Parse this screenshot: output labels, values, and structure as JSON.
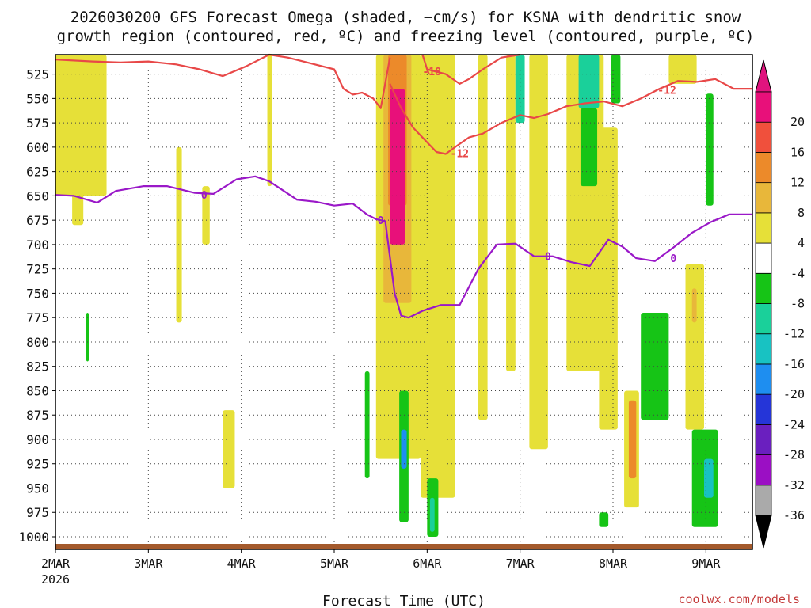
{
  "title_line1": "2026030200 GFS Forecast Omega (shaded, −cm/s) for KSNA with dendritic snow",
  "title_line2": "growth region (contoured, red, ºC) and freezing level (contoured, purple, ºC)",
  "xlabel": "Forecast Time (UTC)",
  "credit": "coolwx.com/models",
  "chart_data": {
    "type": "heatmap",
    "x_unit": "days since 2026-03-02 00Z",
    "x_range": [
      0,
      7.5
    ],
    "x_ticks": [
      {
        "x": 0,
        "label": "2MAR"
      },
      {
        "x": 1,
        "label": "3MAR"
      },
      {
        "x": 2,
        "label": "4MAR"
      },
      {
        "x": 3,
        "label": "5MAR"
      },
      {
        "x": 4,
        "label": "6MAR"
      },
      {
        "x": 5,
        "label": "7MAR"
      },
      {
        "x": 6,
        "label": "8MAR"
      },
      {
        "x": 7,
        "label": "9MAR"
      }
    ],
    "x_year_label": "2026",
    "y_unit": "hPa",
    "y_range": [
      1013,
      505
    ],
    "y_ticks": [
      525,
      550,
      575,
      600,
      625,
      650,
      675,
      700,
      725,
      750,
      775,
      800,
      825,
      850,
      875,
      900,
      925,
      950,
      975,
      1000
    ],
    "colorbar": {
      "levels": [
        -36,
        -32,
        -28,
        -24,
        -20,
        -16,
        -12,
        -8,
        -4,
        4,
        8,
        12,
        16,
        20
      ],
      "labels": [
        "-36",
        "-32",
        "-28",
        "-24",
        "-20",
        "-16",
        "-12",
        "-8",
        "-4",
        "4",
        "8",
        "12",
        "16",
        "20"
      ],
      "colors": [
        "#aaaaaa",
        "#9b0fc4",
        "#6a1fbf",
        "#2535d8",
        "#1e8ef0",
        "#18c2c2",
        "#1ad09a",
        "#16c416",
        "#ffffff",
        "#e6e038",
        "#e8b73a",
        "#ec8a2a",
        "#f0503c",
        "#e8107a"
      ],
      "under_color": "#000000",
      "over_color": "#e0147e"
    },
    "omega_regions": [
      {
        "x0": 0.0,
        "x1": 0.55,
        "p0": 505,
        "p1": 650,
        "color": "#e6e038"
      },
      {
        "x0": 0.18,
        "x1": 0.3,
        "p0": 505,
        "p1": 680,
        "color": "#e6e038"
      },
      {
        "x0": 1.3,
        "x1": 1.36,
        "p0": 600,
        "p1": 780,
        "color": "#e6e038"
      },
      {
        "x0": 1.58,
        "x1": 1.66,
        "p0": 640,
        "p1": 700,
        "color": "#e6e038"
      },
      {
        "x0": 1.8,
        "x1": 1.93,
        "p0": 870,
        "p1": 950,
        "color": "#e6e038"
      },
      {
        "x0": 2.28,
        "x1": 2.33,
        "p0": 505,
        "p1": 640,
        "color": "#e6e038"
      },
      {
        "x0": 3.45,
        "x1": 3.93,
        "p0": 505,
        "p1": 920,
        "color": "#e6e038"
      },
      {
        "x0": 3.53,
        "x1": 3.83,
        "p0": 505,
        "p1": 760,
        "color": "#e8b73a"
      },
      {
        "x0": 3.58,
        "x1": 3.78,
        "p0": 505,
        "p1": 660,
        "color": "#ec8a2a"
      },
      {
        "x0": 3.6,
        "x1": 3.76,
        "p0": 540,
        "p1": 700,
        "color": "#e8107a"
      },
      {
        "x0": 3.93,
        "x1": 4.3,
        "p0": 505,
        "p1": 960,
        "color": "#e6e038"
      },
      {
        "x0": 4.55,
        "x1": 4.65,
        "p0": 505,
        "p1": 880,
        "color": "#e6e038"
      },
      {
        "x0": 4.85,
        "x1": 4.95,
        "p0": 505,
        "p1": 830,
        "color": "#e6e038"
      },
      {
        "x0": 5.1,
        "x1": 5.3,
        "p0": 505,
        "p1": 910,
        "color": "#e6e038"
      },
      {
        "x0": 5.5,
        "x1": 5.9,
        "p0": 505,
        "p1": 830,
        "color": "#e6e038"
      },
      {
        "x0": 5.85,
        "x1": 6.05,
        "p0": 580,
        "p1": 890,
        "color": "#e6e038"
      },
      {
        "x0": 6.12,
        "x1": 6.28,
        "p0": 850,
        "p1": 970,
        "color": "#e6e038"
      },
      {
        "x0": 6.17,
        "x1": 6.25,
        "p0": 860,
        "p1": 940,
        "color": "#ec8a2a"
      },
      {
        "x0": 6.6,
        "x1": 6.9,
        "p0": 505,
        "p1": 535,
        "color": "#e6e038"
      },
      {
        "x0": 6.78,
        "x1": 6.98,
        "p0": 720,
        "p1": 890,
        "color": "#e6e038"
      },
      {
        "x0": 6.85,
        "x1": 6.9,
        "p0": 745,
        "p1": 780,
        "color": "#e8b73a"
      },
      {
        "x0": 4.95,
        "x1": 5.05,
        "p0": 505,
        "p1": 575,
        "color": "#1ad09a"
      },
      {
        "x0": 5.63,
        "x1": 5.85,
        "p0": 505,
        "p1": 560,
        "color": "#1ad09a"
      },
      {
        "x0": 5.65,
        "x1": 5.83,
        "p0": 560,
        "p1": 640,
        "color": "#16c416"
      },
      {
        "x0": 5.98,
        "x1": 6.08,
        "p0": 505,
        "p1": 555,
        "color": "#16c416"
      },
      {
        "x0": 7.0,
        "x1": 7.08,
        "p0": 545,
        "p1": 660,
        "color": "#16c416"
      },
      {
        "x0": 6.3,
        "x1": 6.6,
        "p0": 770,
        "p1": 880,
        "color": "#16c416"
      },
      {
        "x0": 6.85,
        "x1": 7.13,
        "p0": 890,
        "p1": 990,
        "color": "#16c416"
      },
      {
        "x0": 6.98,
        "x1": 7.08,
        "p0": 920,
        "p1": 960,
        "color": "#18c2c2"
      },
      {
        "x0": 3.7,
        "x1": 3.8,
        "p0": 850,
        "p1": 985,
        "color": "#16c416"
      },
      {
        "x0": 3.72,
        "x1": 3.78,
        "p0": 890,
        "p1": 930,
        "color": "#1e8ef0"
      },
      {
        "x0": 4.0,
        "x1": 4.12,
        "p0": 940,
        "p1": 1000,
        "color": "#16c416"
      },
      {
        "x0": 4.03,
        "x1": 4.08,
        "p0": 960,
        "p1": 995,
        "color": "#1ad09a"
      },
      {
        "x0": 3.33,
        "x1": 3.38,
        "p0": 830,
        "p1": 940,
        "color": "#16c416"
      },
      {
        "x0": 0.33,
        "x1": 0.36,
        "p0": 770,
        "p1": 820,
        "color": "#16c416"
      },
      {
        "x0": 5.85,
        "x1": 5.95,
        "p0": 975,
        "p1": 990,
        "color": "#16c416"
      }
    ],
    "freezing_level": {
      "name": "freezing level 0C",
      "color": "#9a18c8",
      "x": [
        0,
        0.2,
        0.45,
        0.65,
        0.95,
        1.2,
        1.5,
        1.7,
        1.95,
        2.15,
        2.3,
        2.6,
        2.8,
        3.0,
        3.2,
        3.35,
        3.45,
        3.55,
        3.65,
        3.72,
        3.8,
        3.95,
        4.15,
        4.35,
        4.55,
        4.75,
        4.95,
        5.15,
        5.35,
        5.55,
        5.75,
        5.95,
        6.1,
        6.25,
        6.45,
        6.65,
        6.85,
        7.05,
        7.25,
        7.5
      ],
      "y": [
        649,
        650,
        657,
        645,
        640,
        640,
        647,
        648,
        633,
        630,
        635,
        654,
        656,
        660,
        658,
        669,
        674,
        676,
        750,
        773,
        775,
        768,
        762,
        762,
        725,
        700,
        699,
        712,
        712,
        718,
        722,
        695,
        702,
        714,
        717,
        703,
        688,
        677,
        669,
        669
      ],
      "labels": [
        {
          "x": 1.6,
          "p": 649,
          "text": "0"
        },
        {
          "x": 3.5,
          "p": 675,
          "text": "0"
        },
        {
          "x": 5.3,
          "p": 712,
          "text": "0"
        },
        {
          "x": 6.65,
          "p": 714,
          "text": "0"
        }
      ]
    },
    "dgz_contours": [
      {
        "name": "-18C upper",
        "color": "#e84848",
        "x": [
          0.0,
          0.4,
          0.7,
          1.0,
          1.3,
          1.55,
          1.8,
          2.05,
          2.3,
          2.5,
          2.75,
          3.0,
          3.1,
          3.2,
          3.3,
          3.42,
          3.5,
          3.6
        ],
        "y": [
          510,
          512,
          513,
          512,
          515,
          520,
          527,
          517,
          505,
          508,
          514,
          520,
          540,
          546,
          544,
          550,
          560,
          508
        ]
      },
      {
        "name": "-18C right",
        "color": "#e84848",
        "x": [
          4.0,
          4.2,
          4.35,
          4.45,
          4.6,
          4.8,
          5.0
        ],
        "y": [
          520,
          525,
          535,
          530,
          520,
          508,
          505
        ]
      },
      {
        "name": "-12C",
        "color": "#e84848",
        "x": [
          3.6,
          3.72,
          3.85,
          4.0,
          4.1,
          4.2,
          4.3,
          4.45,
          4.6,
          4.8,
          5.0,
          5.15,
          5.3,
          5.5,
          5.7,
          5.9,
          6.1,
          6.3,
          6.5,
          6.7,
          6.9,
          7.1,
          7.3,
          7.5
        ],
        "y": [
          535,
          560,
          580,
          595,
          605,
          607,
          600,
          590,
          586,
          575,
          567,
          570,
          566,
          558,
          555,
          553,
          558,
          550,
          540,
          532,
          533,
          530,
          540,
          540
        ]
      },
      {
        "name": "-18C spike",
        "color": "#e84848",
        "x": [
          3.95,
          4.0,
          4.02
        ],
        "y": [
          505,
          520,
          525
        ]
      }
    ],
    "dgz_labels": [
      {
        "x": 4.05,
        "p": 522,
        "text": "-18"
      },
      {
        "x": 4.35,
        "p": 606,
        "text": "-12"
      },
      {
        "x": 6.58,
        "p": 541,
        "text": "-12"
      }
    ],
    "terrain_color": "#a45a2c"
  }
}
